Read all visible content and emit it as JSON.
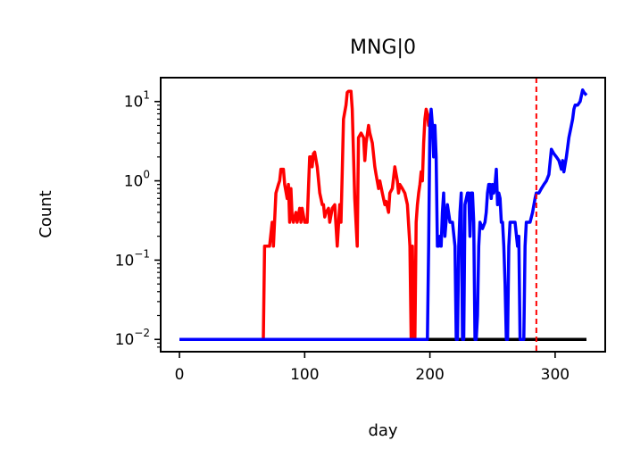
{
  "chart_data": {
    "type": "line",
    "title": "MNG|0",
    "xlabel": "day",
    "ylabel": "Count",
    "yscale": "log",
    "xlim": [
      -15,
      340
    ],
    "ylim": [
      0.007,
      20
    ],
    "x_ticks": [
      {
        "value": 0,
        "label": "0"
      },
      {
        "value": 100,
        "label": "100"
      },
      {
        "value": 200,
        "label": "200"
      },
      {
        "value": 300,
        "label": "300"
      }
    ],
    "y_ticks": [
      {
        "value": 0.01,
        "base": "10",
        "exp": "−2"
      },
      {
        "value": 0.1,
        "base": "10",
        "exp": "−1"
      },
      {
        "value": 1,
        "base": "10",
        "exp": "0"
      },
      {
        "value": 10,
        "base": "10",
        "exp": "1"
      }
    ],
    "grid": false,
    "vline": {
      "x": 285,
      "color": "#ff0000",
      "style": "dashed"
    },
    "series": [
      {
        "color": "#000000",
        "x": [
          0,
          325
        ],
        "y": [
          0.01,
          0.01
        ]
      },
      {
        "color": "#ff0000",
        "x": [
          0,
          67,
          68,
          70,
          72,
          74,
          75,
          77,
          79,
          80,
          81,
          83,
          84,
          86,
          87,
          88,
          89,
          90,
          91,
          93,
          94,
          96,
          97,
          98,
          100,
          101,
          102,
          104,
          105,
          106,
          107,
          108,
          110,
          112,
          114,
          115,
          116,
          117,
          119,
          120,
          122,
          124,
          126,
          128,
          129,
          130,
          131,
          133,
          134,
          135,
          137,
          138,
          140,
          142,
          143,
          145,
          147,
          148,
          149,
          151,
          152,
          154,
          156,
          157,
          159,
          160,
          162,
          164,
          165,
          167,
          168,
          170,
          172,
          174,
          175,
          176,
          178,
          180,
          182,
          184,
          185,
          186,
          187,
          188,
          189,
          190,
          191,
          192,
          193,
          194,
          195,
          196,
          197,
          198,
          199,
          200
        ],
        "y": [
          0.01,
          0.01,
          0.15,
          0.15,
          0.15,
          0.3,
          0.15,
          0.7,
          0.9,
          1.0,
          1.4,
          1.4,
          0.9,
          0.6,
          0.9,
          0.3,
          0.8,
          0.35,
          0.3,
          0.4,
          0.3,
          0.45,
          0.3,
          0.45,
          0.3,
          0.3,
          0.3,
          2.0,
          2.0,
          1.5,
          2.2,
          2.3,
          1.5,
          0.7,
          0.5,
          0.5,
          0.35,
          0.4,
          0.45,
          0.3,
          0.45,
          0.5,
          0.15,
          0.5,
          0.3,
          1.3,
          6.0,
          9.0,
          13.0,
          13.5,
          13.5,
          8.0,
          0.6,
          0.15,
          3.5,
          4.0,
          3.5,
          1.8,
          3.0,
          5.0,
          4.0,
          3.0,
          1.5,
          1.2,
          0.8,
          1.0,
          0.7,
          0.5,
          0.55,
          0.4,
          0.7,
          0.8,
          1.5,
          1.0,
          0.7,
          0.9,
          0.8,
          0.7,
          0.5,
          0.15,
          0.01,
          0.15,
          0.01,
          0.01,
          0.3,
          0.5,
          0.7,
          0.9,
          1.3,
          1.0,
          3.0,
          6.0,
          8.0,
          7.0,
          5.0,
          7.0
        ]
      },
      {
        "color": "#0000ff",
        "x": [
          0,
          196,
          197,
          198,
          199,
          200,
          201,
          202,
          203,
          204,
          205,
          206,
          207,
          208,
          209,
          210,
          211,
          212,
          214,
          216,
          218,
          220,
          221,
          222,
          223,
          224,
          225,
          226,
          227,
          228,
          230,
          231,
          232,
          233,
          234,
          235,
          236,
          237,
          238,
          239,
          240,
          242,
          244,
          245,
          246,
          247,
          248,
          249,
          250,
          251,
          252,
          253,
          254,
          255,
          256,
          257,
          258,
          259,
          260,
          261,
          262,
          263,
          264,
          266,
          268,
          270,
          271,
          272,
          273,
          274,
          275,
          276,
          277,
          278,
          279,
          280,
          282,
          284,
          285,
          287,
          289,
          291,
          293,
          295,
          297,
          299,
          301,
          303,
          305,
          306,
          307,
          309,
          311,
          313,
          314,
          315,
          316,
          318,
          320,
          322,
          323,
          325
        ],
        "y": [
          0.01,
          0.01,
          0.01,
          0.01,
          0.15,
          5.0,
          8.0,
          5.0,
          2.0,
          5.0,
          2.0,
          0.15,
          0.15,
          0.2,
          0.15,
          0.4,
          0.7,
          0.2,
          0.5,
          0.3,
          0.3,
          0.15,
          0.01,
          0.01,
          0.15,
          0.4,
          0.7,
          0.01,
          0.01,
          0.5,
          0.7,
          0.7,
          0.2,
          0.7,
          0.7,
          0.3,
          0.01,
          0.01,
          0.02,
          0.15,
          0.3,
          0.25,
          0.3,
          0.4,
          0.7,
          0.9,
          0.9,
          0.6,
          0.9,
          0.7,
          0.9,
          1.4,
          0.5,
          0.7,
          0.6,
          0.3,
          0.3,
          0.15,
          0.05,
          0.01,
          0.01,
          0.15,
          0.3,
          0.3,
          0.3,
          0.15,
          0.2,
          0.01,
          0.01,
          0.01,
          0.01,
          0.15,
          0.3,
          0.3,
          0.3,
          0.3,
          0.4,
          0.6,
          0.7,
          0.7,
          0.8,
          0.9,
          1.0,
          1.2,
          2.5,
          2.2,
          2.0,
          1.8,
          1.4,
          1.8,
          1.3,
          2.0,
          3.5,
          5.0,
          6.0,
          8.0,
          9.0,
          9.0,
          10.0,
          14.0,
          13.0,
          12.0
        ]
      }
    ]
  }
}
